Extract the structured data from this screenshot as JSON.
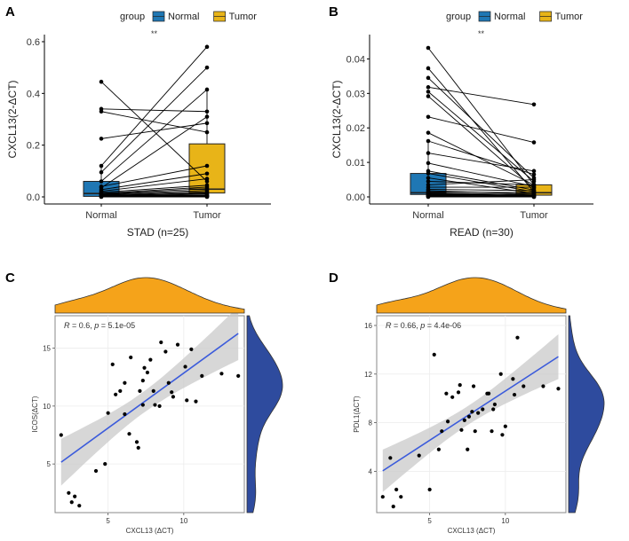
{
  "chart_data": [
    {
      "panel": "A",
      "type": "box-paired",
      "legend": {
        "title": "group",
        "items": [
          {
            "label": "Normal",
            "color": "#1f77b4"
          },
          {
            "label": "Tumor",
            "color": "#e8b418"
          }
        ],
        "position": "top"
      },
      "significance": "**",
      "ylabel": "CXCL13(2-ΔCT)",
      "xlabel": "STAD  (n=25)",
      "categories": [
        "Normal",
        "Tumor"
      ],
      "ylim": [
        0,
        0.6
      ],
      "yticks": [
        "0.0",
        "0.2",
        "0.4",
        "0.6"
      ],
      "box": {
        "Normal": {
          "q1": 0.002,
          "median": 0.013,
          "q3": 0.06,
          "whisker_low": 0.0,
          "whisker_high": 0.12
        },
        "Tumor": {
          "q1": 0.015,
          "median": 0.03,
          "q3": 0.205,
          "whisker_low": 0.0,
          "whisker_high": 0.42
        }
      },
      "pairs": [
        [
          0.445,
          0.06
        ],
        [
          0.34,
          0.33
        ],
        [
          0.33,
          0.25
        ],
        [
          0.225,
          0.285
        ],
        [
          0.12,
          0.58
        ],
        [
          0.095,
          0.5
        ],
        [
          0.06,
          0.415
        ],
        [
          0.04,
          0.12
        ],
        [
          0.035,
          0.31
        ],
        [
          0.028,
          0.09
        ],
        [
          0.022,
          0.07
        ],
        [
          0.018,
          0.045
        ],
        [
          0.014,
          0.038
        ],
        [
          0.012,
          0.032
        ],
        [
          0.01,
          0.025
        ],
        [
          0.008,
          0.02
        ],
        [
          0.006,
          0.015
        ],
        [
          0.005,
          0.012
        ],
        [
          0.004,
          0.008
        ],
        [
          0.003,
          0.006
        ],
        [
          0.002,
          0.004
        ],
        [
          0.002,
          0.003
        ],
        [
          0.001,
          0.002
        ],
        [
          0.001,
          0.001
        ],
        [
          0.0,
          0.0
        ]
      ]
    },
    {
      "panel": "B",
      "type": "box-paired",
      "legend": {
        "title": "group",
        "items": [
          {
            "label": "Normal",
            "color": "#1f77b4"
          },
          {
            "label": "Tumor",
            "color": "#e8b418"
          }
        ],
        "position": "top"
      },
      "significance": "**",
      "ylabel": "CXCL13(2-ΔCT)",
      "xlabel": "READ   (n=30)",
      "categories": [
        "Normal",
        "Tumor"
      ],
      "ylim": [
        0,
        0.045
      ],
      "yticks": [
        "0.00",
        "0.01",
        "0.02",
        "0.03",
        "0.04"
      ],
      "box": {
        "Normal": {
          "q1": 0.0007,
          "median": 0.0012,
          "q3": 0.0068,
          "whisker_low": 0.0,
          "whisker_high": 0.016
        },
        "Tumor": {
          "q1": 0.0005,
          "median": 0.0012,
          "q3": 0.0035,
          "whisker_low": 0.0,
          "whisker_high": 0.0075
        }
      },
      "pairs": [
        [
          0.0432,
          0.0035
        ],
        [
          0.0373,
          0.0015
        ],
        [
          0.0345,
          0.0055
        ],
        [
          0.0318,
          0.0268
        ],
        [
          0.0305,
          0.0045
        ],
        [
          0.0292,
          0.0025
        ],
        [
          0.0232,
          0.0158
        ],
        [
          0.0186,
          0.0035
        ],
        [
          0.0162,
          0.0065
        ],
        [
          0.0127,
          0.0075
        ],
        [
          0.0098,
          0.003
        ],
        [
          0.0075,
          0.002
        ],
        [
          0.0068,
          0.0015
        ],
        [
          0.0055,
          0.001
        ],
        [
          0.0045,
          0.0035
        ],
        [
          0.0035,
          0.005
        ],
        [
          0.0028,
          0.0028
        ],
        [
          0.0022,
          0.0018
        ],
        [
          0.0018,
          0.0008
        ],
        [
          0.0015,
          0.0012
        ],
        [
          0.0012,
          0.0006
        ],
        [
          0.001,
          0.0004
        ],
        [
          0.0008,
          0.0003
        ],
        [
          0.0006,
          0.0005
        ],
        [
          0.0005,
          0.0002
        ],
        [
          0.0004,
          0.0001
        ],
        [
          0.0003,
          0.0002
        ],
        [
          0.0002,
          0.0001
        ],
        [
          0.0001,
          0.0
        ],
        [
          0.0,
          0.0
        ]
      ]
    },
    {
      "panel": "C",
      "type": "scatter",
      "annotation": {
        "r_label": "R",
        "r_value": "0.6",
        "p_label": "p",
        "p_value": "5.1e-05"
      },
      "xlabel": "CXCL13 (ΔCT)",
      "ylabel": "ICOS(ΔCT)",
      "xlim": [
        1.5,
        14
      ],
      "ylim": [
        0.8,
        17.8
      ],
      "xticks": [
        5,
        10
      ],
      "yticks": [
        5,
        10,
        15
      ],
      "regression": {
        "intercept": 3.35,
        "slope": 0.95
      },
      "x_density_color": "#f5a31a",
      "y_density_color": "#2e4b9e",
      "points": [
        [
          1.9,
          7.5
        ],
        [
          2.4,
          2.5
        ],
        [
          2.6,
          1.7
        ],
        [
          2.8,
          2.2
        ],
        [
          3.1,
          1.4
        ],
        [
          4.2,
          4.4
        ],
        [
          4.8,
          5.0
        ],
        [
          5.0,
          9.4
        ],
        [
          5.3,
          13.6
        ],
        [
          5.5,
          11.0
        ],
        [
          5.8,
          11.3
        ],
        [
          6.1,
          12.0
        ],
        [
          6.1,
          9.3
        ],
        [
          6.4,
          7.6
        ],
        [
          6.5,
          14.2
        ],
        [
          6.9,
          6.9
        ],
        [
          7.0,
          6.4
        ],
        [
          7.1,
          11.3
        ],
        [
          7.3,
          12.2
        ],
        [
          7.3,
          10.1
        ],
        [
          7.4,
          13.3
        ],
        [
          7.6,
          12.9
        ],
        [
          7.8,
          14.0
        ],
        [
          8.0,
          11.3
        ],
        [
          8.1,
          10.1
        ],
        [
          8.4,
          10.0
        ],
        [
          8.5,
          15.5
        ],
        [
          8.8,
          14.7
        ],
        [
          9.0,
          12.0
        ],
        [
          9.2,
          11.2
        ],
        [
          9.3,
          10.8
        ],
        [
          9.6,
          15.3
        ],
        [
          10.1,
          13.4
        ],
        [
          10.2,
          10.5
        ],
        [
          10.5,
          14.9
        ],
        [
          10.8,
          10.4
        ],
        [
          11.2,
          12.6
        ],
        [
          12.5,
          12.8
        ],
        [
          13.6,
          12.6
        ]
      ]
    },
    {
      "panel": "D",
      "type": "scatter",
      "annotation": {
        "r_label": "R",
        "r_value": "0.66",
        "p_label": "p",
        "p_value": "4.4e-06"
      },
      "xlabel": "CXCL13 (ΔCT)",
      "ylabel": "PDL1(ΔCT)",
      "xlim": [
        1.5,
        14
      ],
      "ylim": [
        0.6,
        16.8
      ],
      "xticks": [
        5,
        10
      ],
      "yticks": [
        4,
        8,
        12,
        16
      ],
      "regression": {
        "intercept": 2.5,
        "slope": 0.81
      },
      "x_density_color": "#f5a31a",
      "y_density_color": "#2e4b9e",
      "points": [
        [
          1.9,
          1.9
        ],
        [
          2.4,
          5.1
        ],
        [
          2.6,
          1.1
        ],
        [
          2.8,
          2.5
        ],
        [
          3.1,
          1.9
        ],
        [
          4.3,
          5.3
        ],
        [
          5.0,
          2.5
        ],
        [
          5.3,
          13.6
        ],
        [
          5.6,
          5.8
        ],
        [
          5.8,
          7.3
        ],
        [
          6.1,
          10.4
        ],
        [
          6.2,
          8.1
        ],
        [
          6.5,
          10.1
        ],
        [
          6.9,
          10.5
        ],
        [
          7.0,
          11.1
        ],
        [
          7.1,
          7.4
        ],
        [
          7.3,
          8.2
        ],
        [
          7.5,
          5.8
        ],
        [
          7.6,
          8.5
        ],
        [
          7.8,
          8.9
        ],
        [
          7.9,
          11.0
        ],
        [
          8.0,
          7.3
        ],
        [
          8.2,
          8.8
        ],
        [
          8.5,
          9.1
        ],
        [
          8.8,
          10.4
        ],
        [
          8.9,
          10.4
        ],
        [
          9.1,
          7.3
        ],
        [
          9.2,
          9.1
        ],
        [
          9.3,
          9.5
        ],
        [
          9.7,
          12.0
        ],
        [
          9.8,
          7.0
        ],
        [
          10.0,
          7.7
        ],
        [
          10.5,
          11.6
        ],
        [
          10.6,
          10.3
        ],
        [
          10.8,
          15.0
        ],
        [
          11.2,
          11.0
        ],
        [
          12.5,
          11.0
        ],
        [
          13.5,
          10.8
        ]
      ]
    }
  ]
}
